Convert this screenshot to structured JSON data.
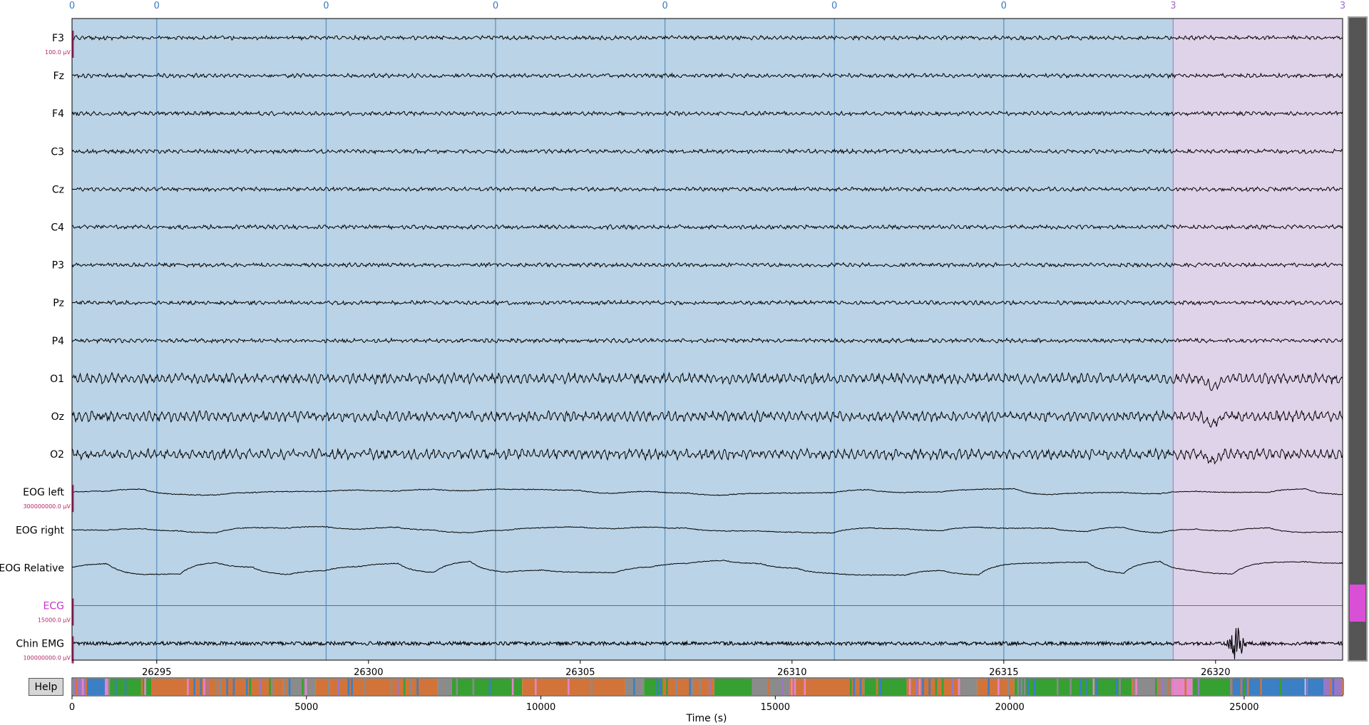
{
  "channels": [
    {
      "name": "F3",
      "type": "eeg",
      "scale": "100.0 µV"
    },
    {
      "name": "Fz",
      "type": "eeg"
    },
    {
      "name": "F4",
      "type": "eeg"
    },
    {
      "name": "C3",
      "type": "eeg"
    },
    {
      "name": "Cz",
      "type": "eeg"
    },
    {
      "name": "C4",
      "type": "eeg"
    },
    {
      "name": "P3",
      "type": "eeg"
    },
    {
      "name": "Pz",
      "type": "eeg"
    },
    {
      "name": "P4",
      "type": "eeg"
    },
    {
      "name": "O1",
      "type": "eeg"
    },
    {
      "name": "Oz",
      "type": "eeg"
    },
    {
      "name": "O2",
      "type": "eeg"
    },
    {
      "name": "EOG left",
      "type": "eog",
      "scale": "300000000.0 µV"
    },
    {
      "name": "EOG right",
      "type": "eog"
    },
    {
      "name": "EOG Relative",
      "type": "eog"
    },
    {
      "name": "ECG",
      "type": "ecg",
      "scale": "15000.0 µV"
    },
    {
      "name": "Chin EMG",
      "type": "emg",
      "scale": "100000000.0 µV"
    }
  ],
  "time_axis": {
    "range": [
      26293,
      26323
    ],
    "ticks": [
      "26295",
      "26300",
      "26305",
      "26310",
      "26315",
      "26320"
    ],
    "epoch_boundaries": [
      26295,
      26299,
      26303,
      26307,
      26311,
      26315,
      26319
    ]
  },
  "epochs": [
    {
      "label": "0",
      "start": 26293,
      "end": 26295
    },
    {
      "label": "0",
      "start": 26295,
      "end": 26299
    },
    {
      "label": "0",
      "start": 26299,
      "end": 26303
    },
    {
      "label": "0",
      "start": 26303,
      "end": 26307
    },
    {
      "label": "0",
      "start": 26307,
      "end": 26311
    },
    {
      "label": "0",
      "start": 26311,
      "end": 26315
    },
    {
      "label": "0",
      "start": 26315,
      "end": 26319
    },
    {
      "label": "3",
      "start": 26319,
      "end": 26323
    },
    {
      "label": "3",
      "start": 26323,
      "end": 26327
    }
  ],
  "overview": {
    "range": [
      0,
      27100
    ],
    "ticks": [
      "0",
      "5000",
      "10000",
      "15000",
      "20000",
      "25000"
    ],
    "xlabel": "Time (s)"
  },
  "help_label": "Help",
  "colors": {
    "stage0": "#bad3e6",
    "stage0_line": "#5b93c4",
    "stage0_text": "#3a7ab8",
    "stage3": "#dfd3ea",
    "stage3_line": "#a889c6",
    "stage3_text": "#a36cd1",
    "scale_bar": "#b3256a",
    "ecg": "#c233c8",
    "scroll_bg": "#555555",
    "scroll_thumb": "#d94fd6",
    "ov_green": "#36a032",
    "ov_orange": "#d2743a",
    "ov_grey": "#8b8b8b",
    "ov_blue": "#3b7fc4",
    "ov_pink": "#e585c8",
    "ov_purple": "#9a77c6"
  }
}
